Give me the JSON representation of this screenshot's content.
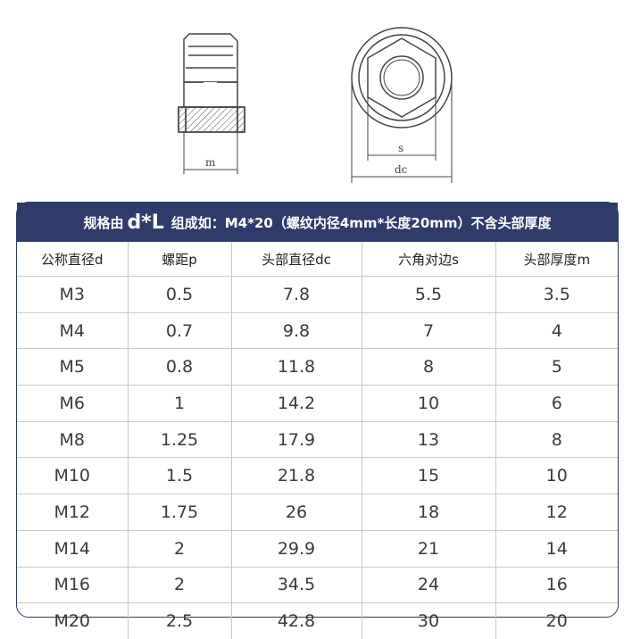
{
  "drawing": {
    "label_m": "m",
    "label_s": "s",
    "label_dc": "dc"
  },
  "banner": {
    "prefix": "规格由",
    "formula": "d*L",
    "suffix": "组成如：M4*20（螺纹内径4mm*长度20mm）不含头部厚度"
  },
  "table": {
    "headers": [
      "公称直径d",
      "螺距p",
      "头部直径dc",
      "六角对边s",
      "头部厚度m"
    ],
    "rows": [
      [
        "M3",
        "0.5",
        "7.8",
        "5.5",
        "3.5"
      ],
      [
        "M4",
        "0.7",
        "9.8",
        "7",
        "4"
      ],
      [
        "M5",
        "0.8",
        "11.8",
        "8",
        "5"
      ],
      [
        "M6",
        "1",
        "14.2",
        "10",
        "6"
      ],
      [
        "M8",
        "1.25",
        "17.9",
        "13",
        "8"
      ],
      [
        "M10",
        "1.5",
        "21.8",
        "15",
        "10"
      ],
      [
        "M12",
        "1.75",
        "26",
        "18",
        "12"
      ],
      [
        "M14",
        "2",
        "29.9",
        "21",
        "14"
      ],
      [
        "M16",
        "2",
        "34.5",
        "24",
        "16"
      ],
      [
        "M20",
        "2.5",
        "42.8",
        "30",
        "20"
      ]
    ]
  }
}
